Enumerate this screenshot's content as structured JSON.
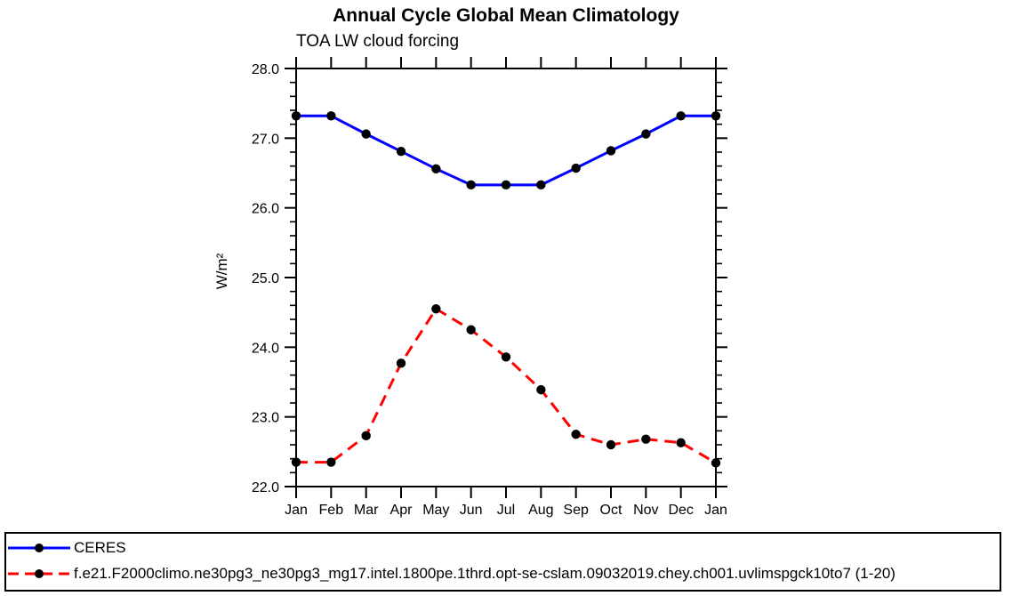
{
  "chart_data": {
    "type": "line",
    "title": "Annual Cycle Global Mean Climatology",
    "subtitle": "TOA LW cloud forcing",
    "ylabel": "W/m²",
    "xlabel": "",
    "x_categories": [
      "Jan",
      "Feb",
      "Mar",
      "Apr",
      "May",
      "Jun",
      "Jul",
      "Aug",
      "Sep",
      "Oct",
      "Nov",
      "Dec",
      "Jan"
    ],
    "ylim": [
      22.0,
      28.0
    ],
    "y_major_step": 1.0,
    "y_minor_step": 0.2,
    "y_tick_format_decimals": 1,
    "grid": false,
    "legend_position": "bottom",
    "frame_color": "#000000",
    "marker_shape": "filled-circle",
    "series": [
      {
        "name": "CERES",
        "color": "#0000ff",
        "style": "solid",
        "marker_color": "#000000",
        "values": [
          27.32,
          27.32,
          27.06,
          26.81,
          26.56,
          26.33,
          26.33,
          26.33,
          26.57,
          26.82,
          27.06,
          27.32,
          27.32
        ]
      },
      {
        "name": "f.e21.F2000climo.ne30pg3_ne30pg3_mg17.intel.1800pe.1thrd.opt-se-cslam.09032019.chey.ch001.uvlimspgck10to7 (1-20)",
        "color": "#ff0000",
        "style": "dashed",
        "marker_color": "#000000",
        "values": [
          22.35,
          22.35,
          22.73,
          23.77,
          24.55,
          24.25,
          23.86,
          23.39,
          22.75,
          22.6,
          22.68,
          22.63,
          22.34
        ]
      }
    ]
  }
}
